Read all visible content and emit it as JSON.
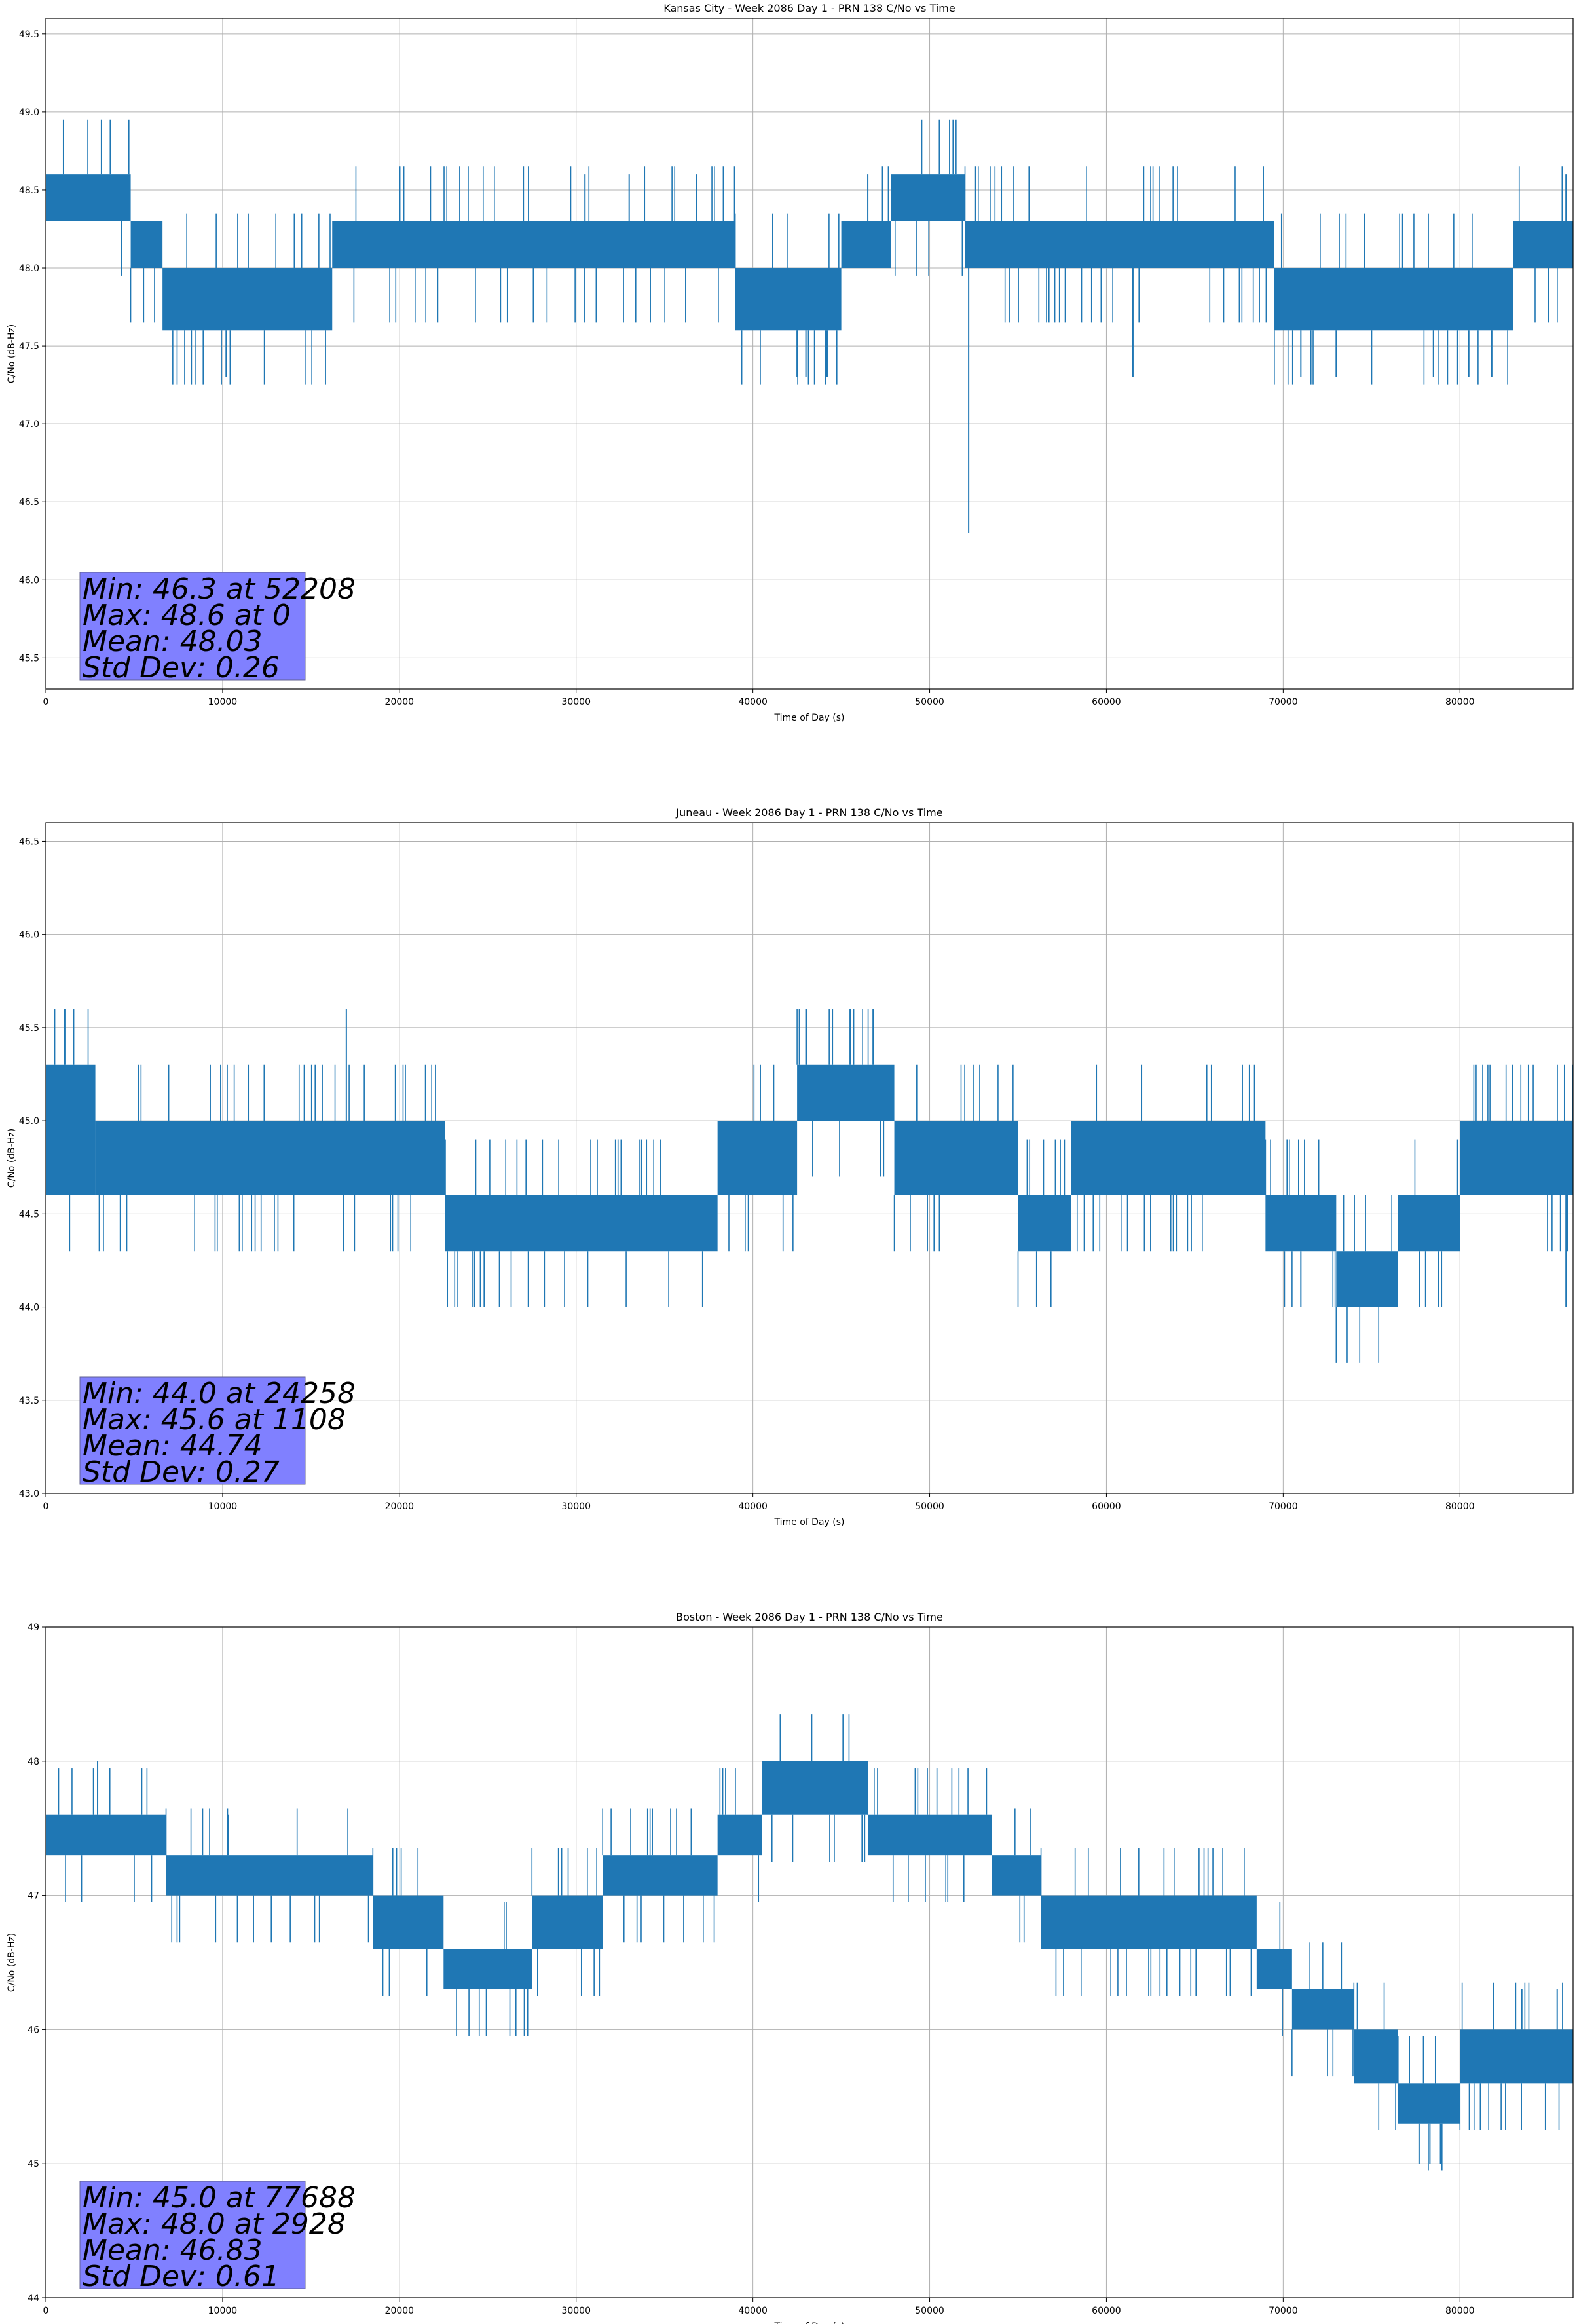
{
  "chart_data": [
    {
      "type": "line",
      "title": "Kansas City - Week 2086 Day 1 - PRN 138 C/No vs Time",
      "xlabel": "Time of Day (s)",
      "ylabel": "C/No (dB-Hz)",
      "xlim": [
        0,
        86400
      ],
      "ylim": [
        45.3,
        49.6
      ],
      "xticks": [
        0,
        10000,
        20000,
        30000,
        40000,
        50000,
        60000,
        70000,
        80000
      ],
      "yticks": [
        45.5,
        46.0,
        46.5,
        47.0,
        47.5,
        48.0,
        48.5,
        49.0,
        49.5
      ],
      "ytick_labels": [
        "45.5",
        "46.0",
        "46.5",
        "47.0",
        "47.5",
        "48.0",
        "48.5",
        "49.0",
        "49.5"
      ],
      "grid": true,
      "series_color": "#1f77b4",
      "series": [
        {
          "name": "C/No",
          "levels": [
            {
              "x0": 0,
              "x1": 4800,
              "lo": 48.3,
              "hi": 48.6
            },
            {
              "x0": 4800,
              "x1": 6600,
              "lo": 48.0,
              "hi": 48.3
            },
            {
              "x0": 6600,
              "x1": 16200,
              "lo": 47.6,
              "hi": 48.0
            },
            {
              "x0": 16200,
              "x1": 39000,
              "lo": 48.0,
              "hi": 48.3
            },
            {
              "x0": 39000,
              "x1": 45000,
              "lo": 47.6,
              "hi": 48.0
            },
            {
              "x0": 45000,
              "x1": 47800,
              "lo": 48.0,
              "hi": 48.3
            },
            {
              "x0": 47800,
              "x1": 52000,
              "lo": 48.3,
              "hi": 48.6
            },
            {
              "x0": 52000,
              "x1": 69500,
              "lo": 48.0,
              "hi": 48.3
            },
            {
              "x0": 69500,
              "x1": 83000,
              "lo": 47.6,
              "hi": 48.0
            },
            {
              "x0": 83000,
              "x1": 86400,
              "lo": 48.0,
              "hi": 48.3
            }
          ],
          "spikes": [
            {
              "x": 52208,
              "y": 46.3
            },
            {
              "x": 10200,
              "y": 47.3
            },
            {
              "x": 42500,
              "y": 47.3
            },
            {
              "x": 43000,
              "y": 47.3
            },
            {
              "x": 44200,
              "y": 47.3
            },
            {
              "x": 61500,
              "y": 47.3
            },
            {
              "x": 71000,
              "y": 47.3
            },
            {
              "x": 73000,
              "y": 47.3
            },
            {
              "x": 78500,
              "y": 47.3
            },
            {
              "x": 80500,
              "y": 47.3
            },
            {
              "x": 81800,
              "y": 47.3
            },
            {
              "x": 30500,
              "y": 48.6
            },
            {
              "x": 33000,
              "y": 48.6
            },
            {
              "x": 36800,
              "y": 48.6
            },
            {
              "x": 46500,
              "y": 48.6
            },
            {
              "x": 86000,
              "y": 48.6
            }
          ]
        }
      ],
      "stats": {
        "min": "Min: 46.3 at 52208",
        "max": "Max: 48.6 at 0",
        "mean": "Mean: 48.03",
        "std": "Std Dev: 0.26"
      }
    },
    {
      "type": "line",
      "title": "Juneau - Week 2086 Day 1 - PRN 138 C/No vs Time",
      "xlabel": "Time of Day (s)",
      "ylabel": "C/No (dB-Hz)",
      "xlim": [
        0,
        86400
      ],
      "ylim": [
        43.0,
        46.6
      ],
      "xticks": [
        0,
        10000,
        20000,
        30000,
        40000,
        50000,
        60000,
        70000,
        80000
      ],
      "yticks": [
        43.0,
        43.5,
        44.0,
        44.5,
        45.0,
        45.5,
        46.0,
        46.5
      ],
      "ytick_labels": [
        "43.0",
        "43.5",
        "44.0",
        "44.5",
        "45.0",
        "45.5",
        "46.0",
        "46.5"
      ],
      "grid": true,
      "series_color": "#1f77b4",
      "series": [
        {
          "name": "C/No",
          "levels": [
            {
              "x0": 0,
              "x1": 2800,
              "lo": 44.6,
              "hi": 45.3
            },
            {
              "x0": 2800,
              "x1": 22600,
              "lo": 44.6,
              "hi": 45.0
            },
            {
              "x0": 22600,
              "x1": 38000,
              "lo": 44.3,
              "hi": 44.6
            },
            {
              "x0": 38000,
              "x1": 42500,
              "lo": 44.6,
              "hi": 45.0
            },
            {
              "x0": 42500,
              "x1": 48000,
              "lo": 45.0,
              "hi": 45.3
            },
            {
              "x0": 48000,
              "x1": 55000,
              "lo": 44.6,
              "hi": 45.0
            },
            {
              "x0": 55000,
              "x1": 58000,
              "lo": 44.3,
              "hi": 44.6
            },
            {
              "x0": 58000,
              "x1": 69000,
              "lo": 44.6,
              "hi": 45.0
            },
            {
              "x0": 69000,
              "x1": 73000,
              "lo": 44.3,
              "hi": 44.6
            },
            {
              "x0": 73000,
              "x1": 76500,
              "lo": 44.0,
              "hi": 44.3
            },
            {
              "x0": 76500,
              "x1": 80000,
              "lo": 44.3,
              "hi": 44.6
            },
            {
              "x0": 80000,
              "x1": 86400,
              "lo": 44.6,
              "hi": 45.0
            }
          ],
          "spikes": [
            {
              "x": 1108,
              "y": 45.6
            },
            {
              "x": 17000,
              "y": 45.6
            },
            {
              "x": 43000,
              "y": 45.6
            },
            {
              "x": 44500,
              "y": 45.6
            },
            {
              "x": 45500,
              "y": 45.6
            },
            {
              "x": 46800,
              "y": 45.6
            },
            {
              "x": 24258,
              "y": 44.0
            },
            {
              "x": 24800,
              "y": 44.0
            },
            {
              "x": 28200,
              "y": 44.0
            },
            {
              "x": 71000,
              "y": 44.0
            },
            {
              "x": 86000,
              "y": 44.0
            }
          ]
        }
      ],
      "stats": {
        "min": "Min: 44.0 at 24258",
        "max": "Max: 45.6 at 1108",
        "mean": "Mean: 44.74",
        "std": "Std Dev: 0.27"
      }
    },
    {
      "type": "line",
      "title": "Boston - Week 2086 Day 1 - PRN 138 C/No vs Time",
      "xlabel": "Time of Day (s)",
      "ylabel": "C/No (dB-Hz)",
      "xlim": [
        0,
        86400
      ],
      "ylim": [
        44,
        49
      ],
      "xticks": [
        0,
        10000,
        20000,
        30000,
        40000,
        50000,
        60000,
        70000,
        80000
      ],
      "yticks": [
        44,
        45,
        46,
        47,
        48,
        49
      ],
      "ytick_labels": [
        "44",
        "45",
        "46",
        "47",
        "48",
        "49"
      ],
      "grid": true,
      "series_color": "#1f77b4",
      "series": [
        {
          "name": "C/No",
          "levels": [
            {
              "x0": 0,
              "x1": 6800,
              "lo": 47.3,
              "hi": 47.6
            },
            {
              "x0": 6800,
              "x1": 18500,
              "lo": 47.0,
              "hi": 47.3
            },
            {
              "x0": 18500,
              "x1": 22500,
              "lo": 46.6,
              "hi": 47.0
            },
            {
              "x0": 22500,
              "x1": 27500,
              "lo": 46.3,
              "hi": 46.6
            },
            {
              "x0": 27500,
              "x1": 31500,
              "lo": 46.6,
              "hi": 47.0
            },
            {
              "x0": 31500,
              "x1": 38000,
              "lo": 47.0,
              "hi": 47.3
            },
            {
              "x0": 38000,
              "x1": 40500,
              "lo": 47.3,
              "hi": 47.6
            },
            {
              "x0": 40500,
              "x1": 46500,
              "lo": 47.6,
              "hi": 48.0
            },
            {
              "x0": 46500,
              "x1": 53500,
              "lo": 47.3,
              "hi": 47.6
            },
            {
              "x0": 53500,
              "x1": 56300,
              "lo": 47.0,
              "hi": 47.3
            },
            {
              "x0": 56300,
              "x1": 68500,
              "lo": 46.6,
              "hi": 47.0
            },
            {
              "x0": 68500,
              "x1": 70500,
              "lo": 46.3,
              "hi": 46.6
            },
            {
              "x0": 70500,
              "x1": 74000,
              "lo": 46.0,
              "hi": 46.3
            },
            {
              "x0": 74000,
              "x1": 76500,
              "lo": 45.6,
              "hi": 46.0
            },
            {
              "x0": 76500,
              "x1": 80000,
              "lo": 45.3,
              "hi": 45.6
            },
            {
              "x0": 80000,
              "x1": 86400,
              "lo": 45.6,
              "hi": 46.0
            }
          ],
          "spikes": [
            {
              "x": 2928,
              "y": 48.0
            },
            {
              "x": 10300,
              "y": 47.6
            },
            {
              "x": 77688,
              "y": 45.0
            },
            {
              "x": 78300,
              "y": 45.0
            },
            {
              "x": 78900,
              "y": 45.0
            },
            {
              "x": 83500,
              "y": 46.3
            },
            {
              "x": 85500,
              "y": 46.3
            }
          ]
        }
      ],
      "stats": {
        "min": "Min: 45.0 at 77688",
        "max": "Max: 48.0 at 2928",
        "mean": "Mean: 46.83",
        "std": "Std Dev: 0.61"
      }
    }
  ]
}
